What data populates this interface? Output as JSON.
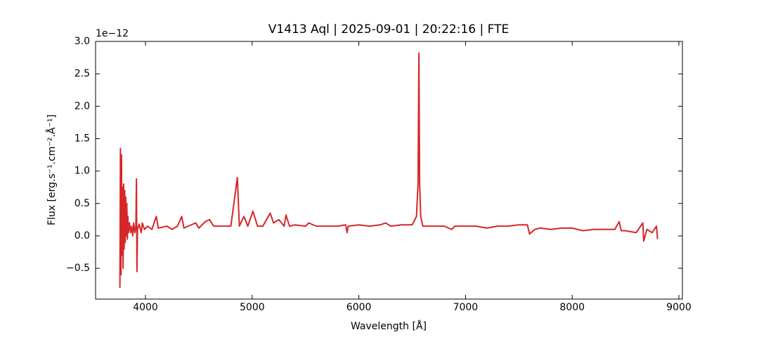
{
  "chart_data": {
    "type": "line",
    "title": "V1413 Aql | 2025-09-01 | 20:22:16 | FTE",
    "x_label": "Wavelength [Å]",
    "y_label": "Flux [erg.s⁻¹.cm⁻².Å⁻¹]",
    "y_offset_text": "1e−12",
    "x": [
      3760,
      3765,
      3770,
      3775,
      3780,
      3785,
      3790,
      3795,
      3800,
      3805,
      3810,
      3815,
      3820,
      3825,
      3830,
      3835,
      3840,
      3850,
      3860,
      3870,
      3880,
      3890,
      3900,
      3910,
      3915,
      3920,
      3925,
      3940,
      3960,
      3970,
      3990,
      4020,
      4060,
      4101,
      4120,
      4200,
      4250,
      4300,
      4340,
      4360,
      4400,
      4471,
      4500,
      4560,
      4600,
      4640,
      4700,
      4800,
      4861,
      4880,
      4922,
      4959,
      5007,
      5050,
      5100,
      5169,
      5200,
      5250,
      5300,
      5317,
      5350,
      5400,
      5500,
      5530,
      5600,
      5700,
      5800,
      5876,
      5890,
      5900,
      6000,
      6100,
      6200,
      6250,
      6300,
      6400,
      6500,
      6540,
      6555,
      6563,
      6570,
      6580,
      6600,
      6700,
      6800,
      6870,
      6900,
      7000,
      7100,
      7200,
      7300,
      7400,
      7500,
      7580,
      7600,
      7650,
      7700,
      7800,
      7900,
      8000,
      8100,
      8200,
      8300,
      8400,
      8440,
      8460,
      8500,
      8600,
      8662,
      8670,
      8700,
      8750,
      8790,
      8800
    ],
    "series": [
      {
        "name": "V1413 Aql",
        "color": "#d62728",
        "values": [
          -0.8,
          1.35,
          -0.6,
          1.25,
          -0.3,
          0.75,
          -0.5,
          0.8,
          -0.2,
          0.7,
          -0.1,
          0.6,
          0.0,
          0.5,
          -0.05,
          0.3,
          0.05,
          0.2,
          0.05,
          0.15,
          0.0,
          0.2,
          0.05,
          0.15,
          0.88,
          -0.55,
          0.1,
          0.18,
          0.05,
          0.2,
          0.1,
          0.15,
          0.1,
          0.3,
          0.12,
          0.15,
          0.1,
          0.15,
          0.3,
          0.12,
          0.15,
          0.2,
          0.12,
          0.22,
          0.25,
          0.15,
          0.15,
          0.15,
          0.9,
          0.15,
          0.3,
          0.15,
          0.38,
          0.15,
          0.15,
          0.35,
          0.2,
          0.25,
          0.15,
          0.32,
          0.15,
          0.17,
          0.15,
          0.2,
          0.15,
          0.15,
          0.15,
          0.17,
          0.05,
          0.15,
          0.17,
          0.15,
          0.17,
          0.2,
          0.15,
          0.17,
          0.17,
          0.3,
          0.8,
          2.82,
          0.8,
          0.3,
          0.15,
          0.15,
          0.15,
          0.1,
          0.15,
          0.15,
          0.15,
          0.12,
          0.15,
          0.15,
          0.17,
          0.17,
          0.03,
          0.1,
          0.12,
          0.1,
          0.12,
          0.12,
          0.08,
          0.1,
          0.1,
          0.1,
          0.22,
          0.08,
          0.08,
          0.05,
          0.2,
          -0.08,
          0.1,
          0.05,
          0.15,
          -0.05
        ]
      }
    ],
    "xlim": [
      3532,
      9033
    ],
    "ylim": [
      -0.975,
      3.0
    ],
    "xticks": [
      4000,
      5000,
      6000,
      7000,
      8000,
      9000
    ],
    "yticks": [
      {
        "value": -0.5,
        "label": "−0.5"
      },
      {
        "value": 0,
        "label": "0.0"
      },
      0.5,
      {
        "value": 1,
        "label": "1.0"
      },
      1.5,
      {
        "value": 2,
        "label": "2.0"
      },
      2.5,
      {
        "value": 3,
        "label": "3.0"
      }
    ]
  }
}
